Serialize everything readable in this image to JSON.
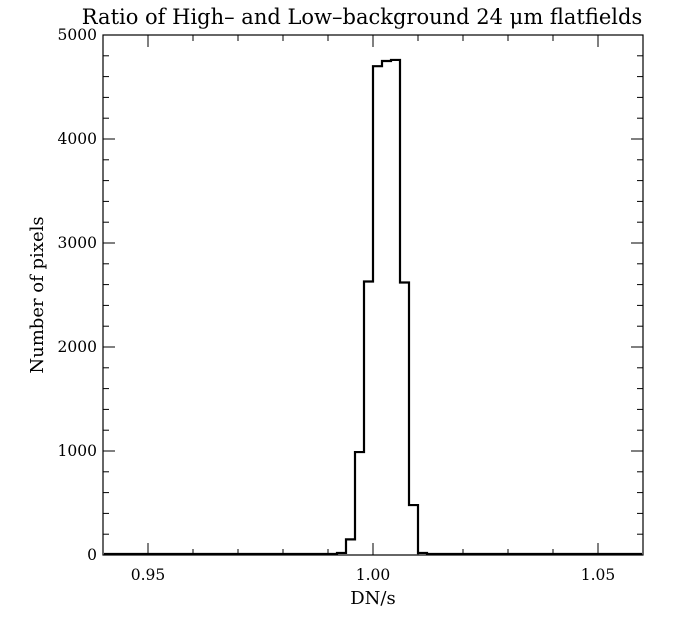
{
  "chart_data": {
    "type": "histogram",
    "title": "Ratio of High– and Low–background 24 μm flatfields",
    "xlabel": "DN/s",
    "ylabel": "Number of pixels",
    "xlim": [
      0.94,
      1.06
    ],
    "ylim": [
      0,
      5000
    ],
    "grid": false,
    "x_major_ticks": [
      0.95,
      1.0,
      1.05
    ],
    "x_tick_labels": [
      "0.95",
      "1.00",
      "1.05"
    ],
    "x_minor_step": 0.01,
    "y_major_ticks": [
      0,
      1000,
      2000,
      3000,
      4000,
      5000
    ],
    "y_tick_labels": [
      "0",
      "1000",
      "2000",
      "3000",
      "4000",
      "5000"
    ],
    "y_minor_step": 200,
    "bin_width": 0.002,
    "bins": [
      {
        "x0": 0.99,
        "value": 0
      },
      {
        "x0": 0.992,
        "value": 20
      },
      {
        "x0": 0.994,
        "value": 150
      },
      {
        "x0": 0.996,
        "value": 990
      },
      {
        "x0": 0.998,
        "value": 2630
      },
      {
        "x0": 1.0,
        "value": 4700
      },
      {
        "x0": 1.002,
        "value": 4750
      },
      {
        "x0": 1.004,
        "value": 4760
      },
      {
        "x0": 1.006,
        "value": 2620
      },
      {
        "x0": 1.008,
        "value": 480
      },
      {
        "x0": 1.01,
        "value": 20
      },
      {
        "x0": 1.012,
        "value": 0
      }
    ]
  }
}
